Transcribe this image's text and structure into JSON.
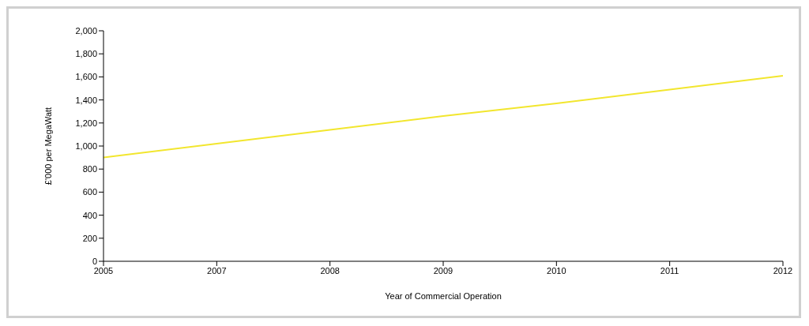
{
  "chart_data": {
    "type": "line",
    "xlabel": "Year of Commercial Operation",
    "ylabel": "£'000 per MegaWatt",
    "categories": [
      "2005",
      "2007",
      "2008",
      "2009",
      "2010",
      "2011",
      "2012"
    ],
    "series": [
      {
        "color": "#f2e62e",
        "values": [
          900,
          1020,
          1140,
          1260,
          1370,
          1490,
          1610
        ]
      }
    ],
    "ylim": [
      0,
      2000
    ],
    "yticks": [
      0,
      {
        "value": 200,
        "label": "200"
      },
      {
        "value": 400,
        "label": "400"
      },
      {
        "value": 600,
        "label": "600"
      },
      {
        "value": 800,
        "label": "800"
      },
      {
        "value": 1000,
        "label": "1,000"
      },
      {
        "value": 1200,
        "label": "1,200"
      },
      {
        "value": 1400,
        "label": "1,400"
      },
      {
        "value": 1600,
        "label": "1,600"
      },
      {
        "value": 1800,
        "label": "1,800"
      },
      {
        "value": 2000,
        "label": "2,000"
      }
    ],
    "grid": false,
    "legend": false,
    "marker": "none",
    "line_style": "solid"
  }
}
